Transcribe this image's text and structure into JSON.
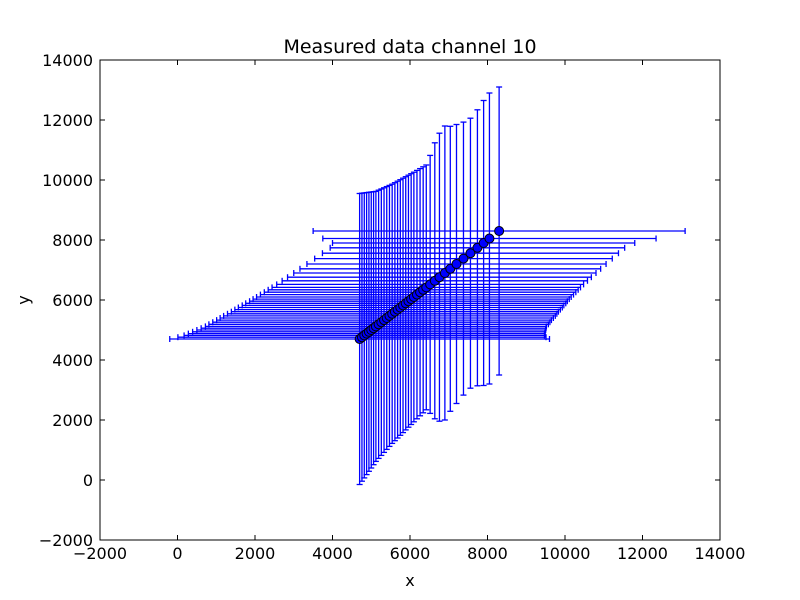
{
  "chart_data": {
    "type": "scatter",
    "title": "Measured data channel 10",
    "xlabel": "x",
    "ylabel": "y",
    "xlim": [
      -2000,
      14000
    ],
    "ylim": [
      -2000,
      14000
    ],
    "x_ticks": [
      -2000,
      0,
      2000,
      4000,
      6000,
      8000,
      10000,
      12000,
      14000
    ],
    "y_ticks": [
      -2000,
      0,
      2000,
      4000,
      6000,
      8000,
      10000,
      12000,
      14000
    ],
    "x_tick_labels": [
      "−2000",
      "0",
      "2000",
      "4000",
      "6000",
      "8000",
      "10000",
      "12000",
      "14000"
    ],
    "y_tick_labels": [
      "−2000",
      "0",
      "2000",
      "4000",
      "6000",
      "8000",
      "10000",
      "12000",
      "14000"
    ],
    "grid": false,
    "legend": null,
    "colors": {
      "errorbar": "#0000ff",
      "marker_fill": "#0000ff",
      "marker_edge": "#000000"
    },
    "series": [
      {
        "x": [
          4700,
          4760,
          4820,
          4880,
          4940,
          5000,
          5060,
          5120,
          5190,
          5260,
          5330,
          5400,
          5470,
          5540,
          5610,
          5680,
          5750,
          5820,
          5890,
          5960,
          6030,
          6100,
          6180,
          6260,
          6340,
          6420,
          6520,
          6640,
          6760,
          6900,
          7040,
          7200,
          7380,
          7560,
          7740,
          7900,
          8050,
          8300
        ],
        "y": [
          4700,
          4760,
          4820,
          4880,
          4940,
          5000,
          5060,
          5120,
          5190,
          5260,
          5330,
          5400,
          5470,
          5540,
          5610,
          5680,
          5750,
          5820,
          5890,
          5960,
          6030,
          6100,
          6180,
          6260,
          6340,
          6420,
          6520,
          6640,
          6760,
          6900,
          7040,
          7200,
          7380,
          7560,
          7740,
          7900,
          8050,
          8300
        ],
        "xerr": [
          4900,
          4750,
          4650,
          4600,
          4550,
          4500,
          4450,
          4400,
          4380,
          4350,
          4320,
          4300,
          4280,
          4250,
          4220,
          4200,
          4180,
          4150,
          4130,
          4100,
          4080,
          4060,
          4040,
          4020,
          4000,
          3980,
          3960,
          3940,
          3920,
          3900,
          3880,
          3860,
          3840,
          3820,
          3800,
          3900,
          4300,
          4800
        ],
        "yerr": [
          4850,
          4800,
          4750,
          4700,
          4650,
          4600,
          4550,
          4500,
          4470,
          4440,
          4410,
          4380,
          4350,
          4320,
          4300,
          4280,
          4260,
          4240,
          4220,
          4200,
          4180,
          4160,
          4140,
          4120,
          4100,
          4080,
          4300,
          4600,
          4800,
          4900,
          4750,
          4650,
          4550,
          4500,
          4600,
          4750,
          4850,
          4800
        ]
      }
    ]
  }
}
